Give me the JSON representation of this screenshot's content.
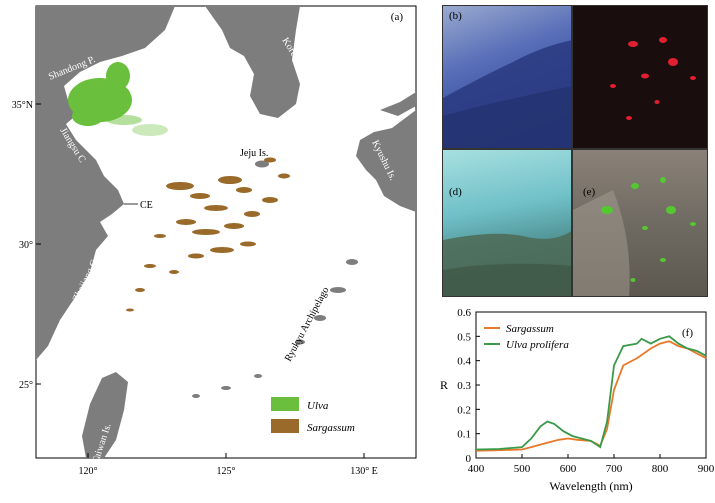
{
  "figure": {
    "map": {
      "panel_label": "(a)",
      "regions": {
        "shandong": "Shandong P.",
        "korea": "Korea P",
        "jiangsu": "Jiangsu C",
        "jeju": "Jeju Is.",
        "kyushu": "Kyushu Is.",
        "ce": "CE",
        "zhejiang": "Zhejiang C",
        "ryukyu": "Ryukyu Archipelago",
        "taiwan": "Taiwan Is."
      },
      "lat_ticks": [
        "35°N",
        "30°",
        "25°"
      ],
      "lon_ticks": [
        "120°",
        "125°",
        "130° E"
      ],
      "legend": [
        {
          "label": "Ulva",
          "color": "#6abf3c"
        },
        {
          "label": "Sargassum",
          "color": "#9a6a2a"
        }
      ],
      "colors": {
        "land": "#7d7d7d",
        "sea": "#ffffff",
        "ulva": "#6abf3c",
        "sargassum": "#9a6a2a"
      }
    },
    "photos": [
      {
        "label": "(b)"
      },
      {
        "label": "(d)"
      },
      {
        "label": "(e)"
      }
    ],
    "chart_data": {
      "type": "line",
      "panel_label": "(f)",
      "xlabel": "Wavelength (nm)",
      "ylabel": "R",
      "xlim": [
        400,
        900
      ],
      "ylim": [
        0,
        0.6
      ],
      "xticks": [
        400,
        500,
        600,
        700,
        800,
        900
      ],
      "yticks": [
        0,
        0.1,
        0.2,
        0.3,
        0.4,
        0.5,
        0.6
      ],
      "legend_position": "top-left",
      "series": [
        {
          "name": "Sargassum",
          "color": "#e8792b",
          "x": [
            400,
            450,
            500,
            520,
            550,
            580,
            600,
            620,
            650,
            670,
            685,
            700,
            720,
            750,
            780,
            800,
            820,
            840,
            860,
            880,
            900
          ],
          "y": [
            0.03,
            0.032,
            0.035,
            0.045,
            0.06,
            0.075,
            0.08,
            0.075,
            0.07,
            0.05,
            0.12,
            0.28,
            0.38,
            0.41,
            0.45,
            0.47,
            0.48,
            0.46,
            0.45,
            0.43,
            0.41
          ]
        },
        {
          "name": "Ulva prolifera",
          "color": "#3a9a4a",
          "x": [
            400,
            450,
            500,
            520,
            540,
            555,
            570,
            590,
            610,
            630,
            650,
            670,
            685,
            700,
            720,
            750,
            760,
            780,
            800,
            820,
            840,
            860,
            880,
            900
          ],
          "y": [
            0.035,
            0.037,
            0.045,
            0.08,
            0.13,
            0.15,
            0.14,
            0.11,
            0.09,
            0.08,
            0.07,
            0.045,
            0.15,
            0.38,
            0.46,
            0.47,
            0.49,
            0.47,
            0.49,
            0.5,
            0.47,
            0.45,
            0.44,
            0.42
          ]
        }
      ]
    }
  }
}
